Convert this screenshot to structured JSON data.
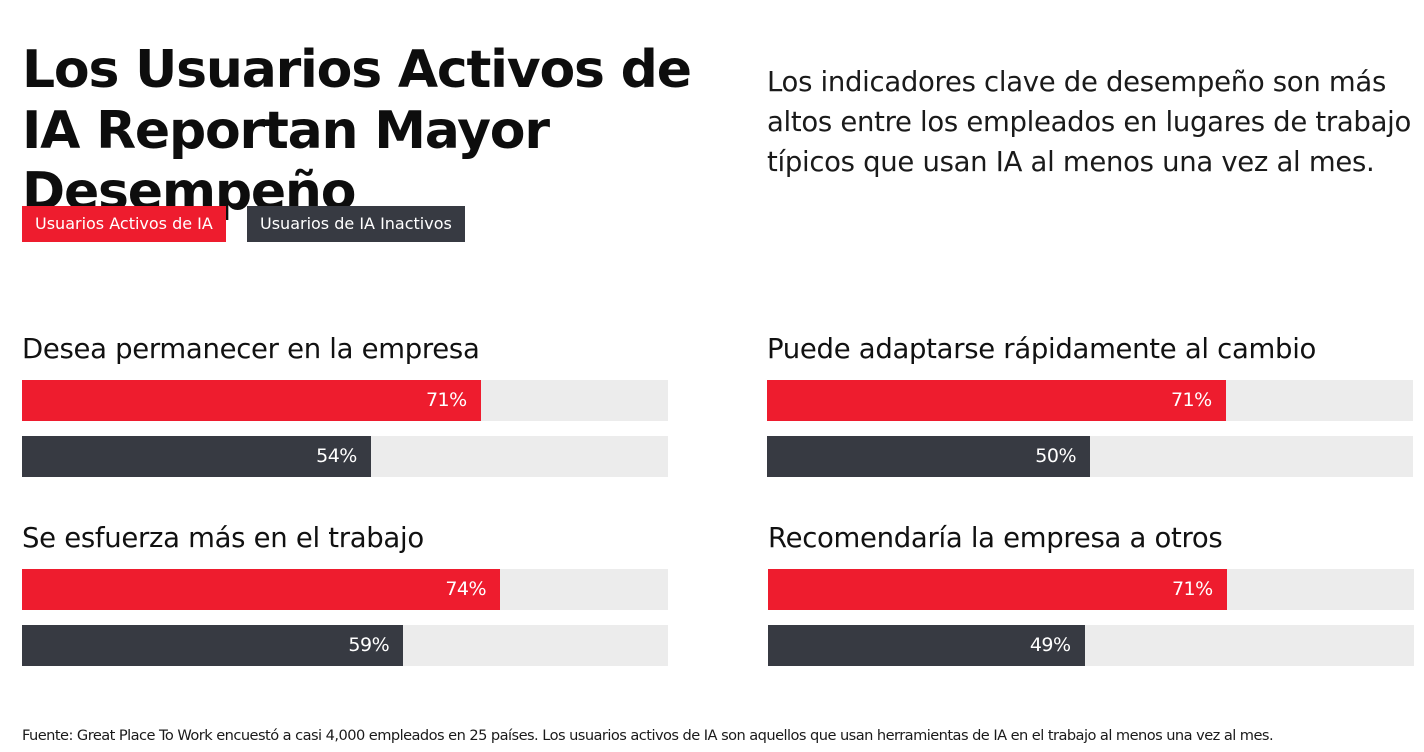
{
  "title": "Los Usuarios Activos de IA Reportan Mayor Desempeño",
  "subtitle": "Los indicadores clave de desempeño son más altos entre los empleados en lugares de trabajo típicos que usan IA al menos una vez al mes.",
  "colors": {
    "active": "#ee1c2e",
    "inactive": "#373a42",
    "track": "#ececec"
  },
  "chart_data": {
    "type": "bar",
    "title": "Los Usuarios Activos de IA Reportan Mayor Desempeño",
    "unit": "%",
    "xlim": [
      0,
      100
    ],
    "legend": [
      "Usuarios Activos de IA",
      "Usuarios de IA Inactivos"
    ],
    "legend_placement": "top-left",
    "categories": [
      "Desea permanecer en la empresa",
      "Puede adaptarse rápidamente al cambio",
      "Se esfuerza más en el trabajo",
      "Recomendaría la empresa a otros"
    ],
    "series": [
      {
        "name": "Usuarios Activos de IA",
        "values": [
          71,
          71,
          74,
          71
        ],
        "labels": [
          "71%",
          "71%",
          "74%",
          "71%"
        ]
      },
      {
        "name": "Usuarios de IA Inactivos",
        "values": [
          54,
          50,
          59,
          49
        ],
        "labels": [
          "54%",
          "50%",
          "59%",
          "49%"
        ]
      }
    ]
  },
  "footer": {
    "source": "Fuente: Great Place To Work encuestó a casi 4,000 empleados en 25 países. Los usuarios activos de IA son aquellos que usan herramientas de IA en el trabajo al menos una vez al mes."
  }
}
